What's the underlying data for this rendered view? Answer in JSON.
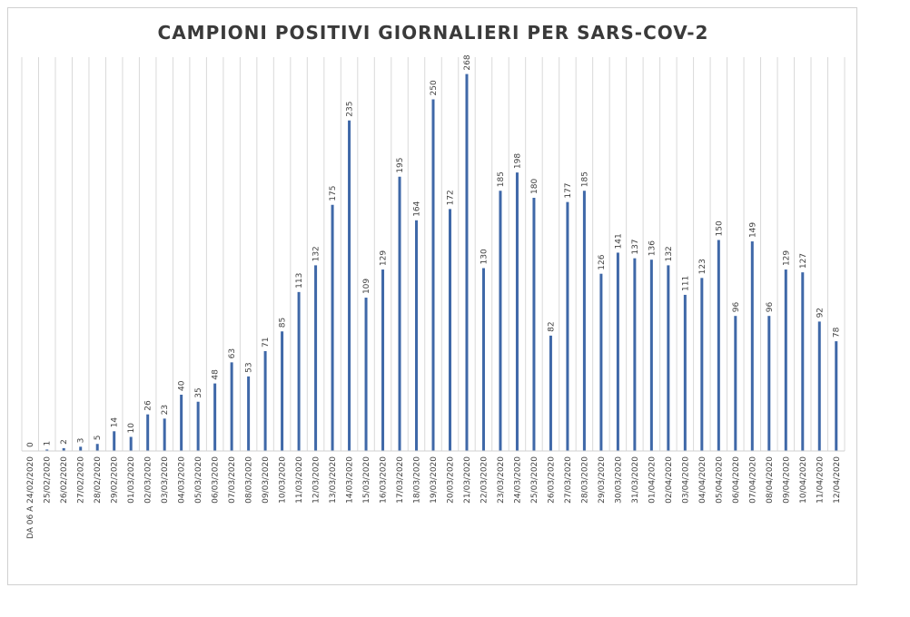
{
  "chart_data": {
    "type": "bar",
    "title": "CAMPIONI POSITIVI GIORNALIERI PER SARS-COV-2",
    "xlabel": "",
    "ylabel": "",
    "ylim": [
      0,
      280
    ],
    "grid": "vertical",
    "legend": "none",
    "bar_color": "#3f68a8",
    "categories": [
      "DA 06 A 24/02/2020",
      "25/02/2020",
      "26/02/2020",
      "27/02/2020",
      "28/02/2020",
      "29/02/2020",
      "01/03/2020",
      "02/03/2020",
      "03/03/2020",
      "04/03/2020",
      "05/03/2020",
      "06/03/2020",
      "07/03/2020",
      "08/03/2020",
      "09/03/2020",
      "10/03/2020",
      "11/03/2020",
      "12/03/2020",
      "13/03/2020",
      "14/03/2020",
      "15/03/2020",
      "16/03/2020",
      "17/03/2020",
      "18/03/2020",
      "19/03/2020",
      "20/03/2020",
      "21/03/2020",
      "22/03/2020",
      "23/03/2020",
      "24/03/2020",
      "25/03/2020",
      "26/03/2020",
      "27/03/2020",
      "28/03/2020",
      "29/03/2020",
      "30/03/2020",
      "31/03/2020",
      "01/04/2020",
      "02/04/2020",
      "03/04/2020",
      "04/04/2020",
      "05/04/2020",
      "06/04/2020",
      "07/04/2020",
      "08/04/2020",
      "09/04/2020",
      "10/04/2020",
      "11/04/2020",
      "12/04/2020"
    ],
    "values": [
      0,
      1,
      2,
      3,
      5,
      14,
      10,
      26,
      23,
      40,
      35,
      48,
      63,
      53,
      71,
      85,
      113,
      132,
      175,
      235,
      109,
      129,
      195,
      164,
      250,
      172,
      268,
      130,
      185,
      198,
      180,
      82,
      177,
      185,
      126,
      141,
      137,
      136,
      132,
      111,
      123,
      150,
      96,
      149,
      96,
      129,
      127,
      92,
      78
    ]
  }
}
